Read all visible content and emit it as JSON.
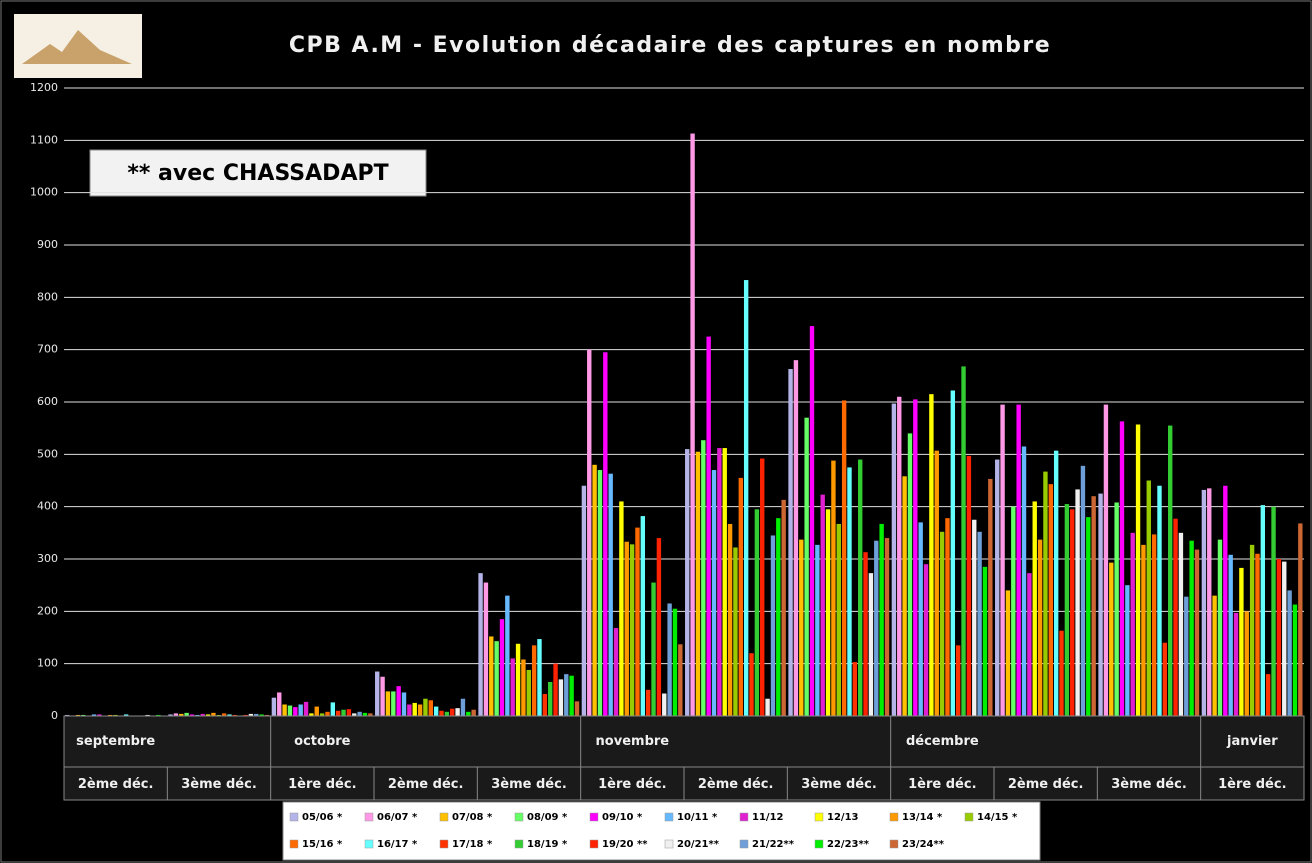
{
  "chart_data": {
    "type": "bar",
    "title": "CPB A.M - Evolution décadaire des captures en nombre",
    "annotation": "** avec CHASSADAPT",
    "categories": [
      "2ème déc.",
      "3ème déc.",
      "1ère déc.",
      "2ème déc.",
      "3ème déc.",
      "1ère déc.",
      "2ème déc.",
      "3ème déc.",
      "1ère déc.",
      "2ème déc.",
      "3ème déc.",
      "1ère déc."
    ],
    "month_labels": [
      "septembre",
      null,
      "octobre",
      null,
      null,
      "novembre",
      null,
      null,
      "décembre",
      null,
      null,
      "janvier"
    ],
    "ylim": [
      0,
      1200
    ],
    "yticks": [
      0,
      100,
      200,
      300,
      400,
      500,
      600,
      700,
      800,
      900,
      1000,
      1100,
      1200
    ],
    "grid": true,
    "series": [
      {
        "name": "05/06 *",
        "color": "#b4b4e8",
        "values": [
          2,
          3,
          35,
          85,
          273,
          440,
          510,
          663,
          597,
          490,
          425,
          432
        ]
      },
      {
        "name": "06/07 *",
        "color": "#ff99e6",
        "values": [
          1,
          5,
          45,
          75,
          255,
          700,
          1113,
          680,
          610,
          595,
          595,
          435
        ]
      },
      {
        "name": "07/08 *",
        "color": "#ffc000",
        "values": [
          2,
          4,
          22,
          47,
          152,
          480,
          505,
          337,
          458,
          240,
          293,
          230
        ]
      },
      {
        "name": "08/09 *",
        "color": "#66ff66",
        "values": [
          2,
          6,
          20,
          47,
          143,
          470,
          527,
          570,
          540,
          400,
          408,
          337
        ]
      },
      {
        "name": "09/10 *",
        "color": "#ff00ff",
        "values": [
          1,
          3,
          17,
          57,
          185,
          695,
          725,
          745,
          605,
          595,
          563,
          440
        ]
      },
      {
        "name": "10/11 *",
        "color": "#66b8ff",
        "values": [
          3,
          2,
          22,
          45,
          230,
          463,
          470,
          327,
          370,
          515,
          250,
          308
        ]
      },
      {
        "name": "11/12",
        "color": "#e020d0",
        "values": [
          3,
          4,
          27,
          22,
          110,
          168,
          512,
          423,
          290,
          273,
          350,
          197
        ]
      },
      {
        "name": "12/13",
        "color": "#ffff00",
        "values": [
          0,
          3,
          5,
          25,
          138,
          410,
          512,
          395,
          615,
          410,
          557,
          283
        ]
      },
      {
        "name": "13/14 *",
        "color": "#ff9900",
        "values": [
          2,
          6,
          18,
          22,
          108,
          333,
          367,
          488,
          507,
          337,
          327,
          200
        ]
      },
      {
        "name": "14/15 *",
        "color": "#99cc00",
        "values": [
          2,
          2,
          5,
          33,
          88,
          328,
          322,
          367,
          352,
          467,
          450,
          327
        ]
      },
      {
        "name": "15/16 *",
        "color": "#ff6a00",
        "values": [
          1,
          5,
          8,
          30,
          135,
          360,
          455,
          603,
          378,
          443,
          347,
          310
        ]
      },
      {
        "name": "16/17 *",
        "color": "#66ffff",
        "values": [
          3,
          3,
          26,
          18,
          147,
          382,
          833,
          475,
          622,
          507,
          440,
          403
        ]
      },
      {
        "name": "17/18 *",
        "color": "#ff3300",
        "values": [
          1,
          2,
          10,
          10,
          42,
          50,
          120,
          103,
          135,
          163,
          140,
          80
        ]
      },
      {
        "name": "18/19 *",
        "color": "#33cc33",
        "values": [
          1,
          1,
          12,
          8,
          65,
          255,
          395,
          490,
          668,
          405,
          555,
          400
        ]
      },
      {
        "name": "19/20 **",
        "color": "#ff2200",
        "values": [
          1,
          2,
          13,
          14,
          100,
          340,
          492,
          313,
          497,
          395,
          377,
          300
        ]
      },
      {
        "name": "20/21**",
        "color": "#f0f0f0",
        "values": [
          2,
          4,
          5,
          15,
          70,
          43,
          33,
          273,
          375,
          433,
          350,
          295
        ]
      },
      {
        "name": "21/22**",
        "color": "#6f9fd8",
        "values": [
          1,
          4,
          8,
          33,
          80,
          215,
          345,
          335,
          352,
          478,
          228,
          240
        ]
      },
      {
        "name": "22/23**",
        "color": "#00ee00",
        "values": [
          2,
          3,
          6,
          8,
          77,
          205,
          378,
          367,
          285,
          380,
          335,
          213
        ]
      },
      {
        "name": "23/24**",
        "color": "#cc6633",
        "values": [
          0,
          2,
          5,
          12,
          28,
          137,
          413,
          340,
          453,
          420,
          318,
          368
        ]
      }
    ]
  }
}
